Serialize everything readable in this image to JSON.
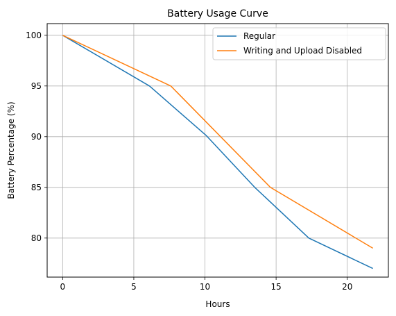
{
  "chart_data": {
    "type": "line",
    "title": "Battery Usage Curve",
    "xlabel": "Hours",
    "ylabel": "Battery Percentage (%)",
    "xlim": [
      -1.09,
      22.89
    ],
    "ylim": [
      76.15,
      101.15
    ],
    "xticks": [
      0,
      5,
      10,
      15,
      20
    ],
    "yticks": [
      80,
      85,
      90,
      95,
      100
    ],
    "grid": true,
    "legend_position": "top-right",
    "series": [
      {
        "name": "Regular",
        "color": "#1f77b4",
        "x": [
          0,
          6.1,
          10.1,
          13.5,
          17.3,
          21.8
        ],
        "y": [
          100,
          95,
          90.1,
          85,
          80,
          77
        ]
      },
      {
        "name": "Writing and Upload Disabled",
        "color": "#ff7f0e",
        "x": [
          0,
          7.6,
          14.6,
          21.8
        ],
        "y": [
          100,
          95,
          85,
          79
        ]
      }
    ]
  }
}
